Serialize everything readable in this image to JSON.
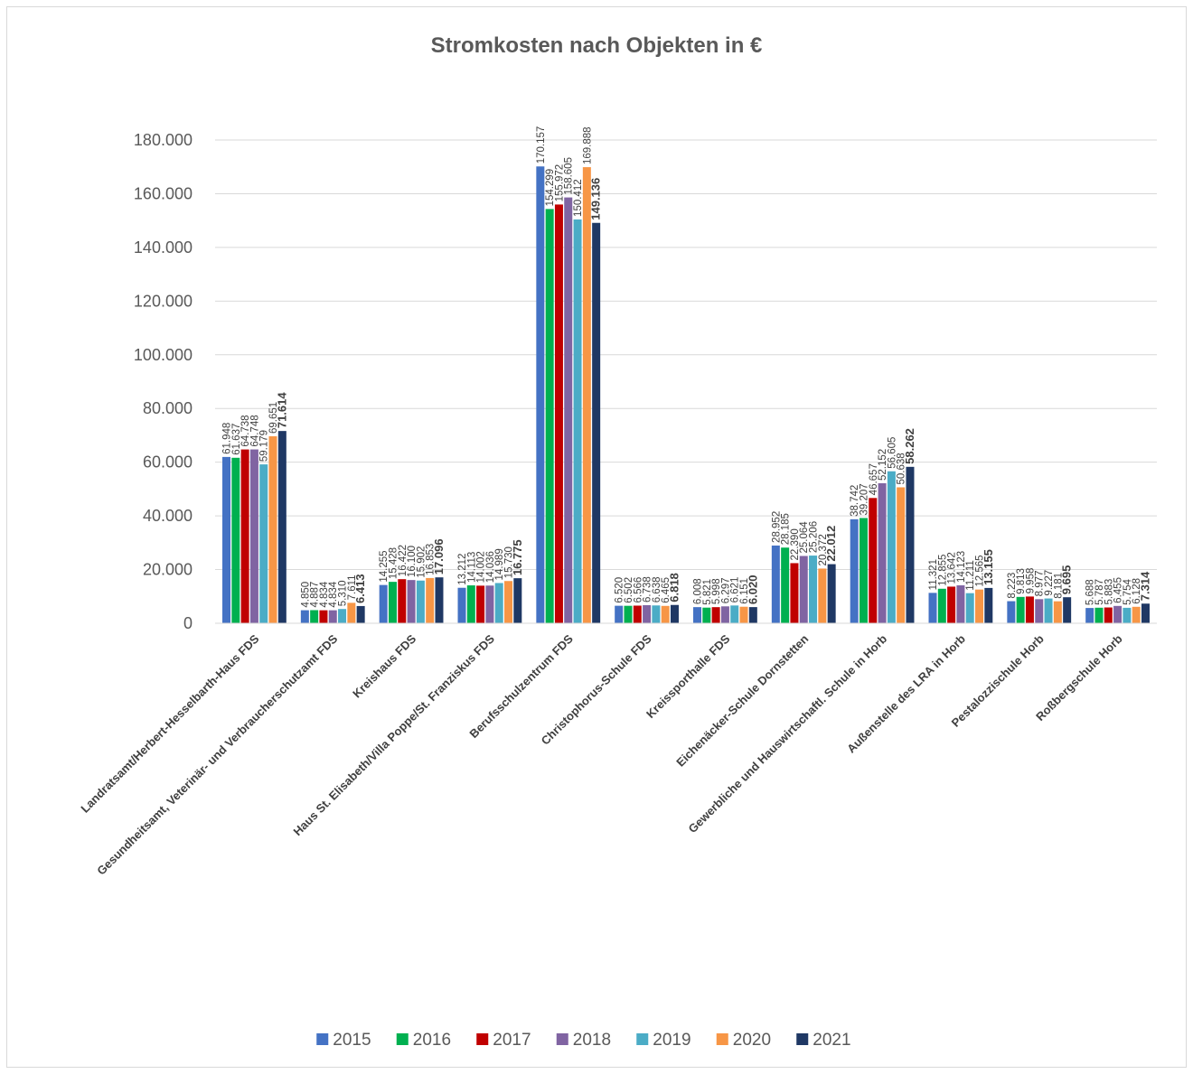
{
  "chart_data": {
    "type": "bar",
    "title": "Stromkosten nach Objekten in €",
    "xlabel": "",
    "ylabel": "",
    "ylim": [
      0,
      180000
    ],
    "yticks": [
      "0",
      "20.000",
      "40.000",
      "60.000",
      "80.000",
      "100.000",
      "120.000",
      "140.000",
      "160.000",
      "180.000"
    ],
    "grid": true,
    "legend_position": "bottom",
    "categories": [
      "Landratsamt/Herbert-Hesselbarth-Haus FDS",
      "Gesundheitsamt, Veterinär- und Verbraucherschutzamt FDS",
      "Kreishaus FDS",
      "Haus St. Elisabeth/Villa Poppe/St. Franziskus FDS",
      "Berufsschulzentrum FDS",
      "Christophorus-Schule FDS",
      "Kreissporthalle FDS",
      "Eichenäcker-Schule Dornstetten",
      "Gewerbliche und Hauswirtschaftl. Schule in Horb",
      "Außenstelle des LRA in Horb",
      "Pestalozzischule Horb",
      "Roßbergschule Horb"
    ],
    "series": [
      {
        "name": "2015",
        "color": "#4472C4",
        "values": [
          61948,
          4850,
          14255,
          13212,
          170157,
          6520,
          6008,
          28952,
          38742,
          11321,
          8223,
          5688
        ],
        "labels": [
          "61.948",
          "4.850",
          "14.255",
          "13.212",
          "170.157",
          "6.520",
          "6.008",
          "28.952",
          "38.742",
          "11.321",
          "8.223",
          "5.688"
        ]
      },
      {
        "name": "2016",
        "color": "#00B050",
        "values": [
          61637,
          4887,
          15428,
          14113,
          154299,
          6502,
          5821,
          28185,
          39207,
          12855,
          9813,
          5787
        ]
      },
      {
        "name": "2017",
        "color": "#C00000",
        "values": [
          64738,
          4834,
          16422,
          14002,
          155972,
          6566,
          5998,
          22390,
          46657,
          13642,
          9958,
          5883
        ]
      },
      {
        "name": "2018",
        "color": "#8064A2",
        "values": [
          64748,
          4834,
          16100,
          14036,
          158605,
          6738,
          6297,
          25064,
          52152,
          14123,
          8977,
          6455
        ]
      },
      {
        "name": "2019",
        "color": "#4BACC6",
        "values": [
          59179,
          5310,
          15902,
          14989,
          150412,
          6638,
          6621,
          25206,
          56605,
          11211,
          9227,
          5754
        ]
      },
      {
        "name": "2020",
        "color": "#F79646",
        "values": [
          69651,
          7611,
          16853,
          15730,
          169888,
          6465,
          6151,
          20372,
          50638,
          12565,
          8181,
          6128
        ]
      },
      {
        "name": "2021",
        "color": "#1F3864",
        "values": [
          71614,
          6413,
          17096,
          16775,
          149136,
          6818,
          6020,
          22012,
          58262,
          13155,
          9695,
          7314
        ],
        "labels": [
          "71.614",
          "6.413",
          "17.096",
          "16.775",
          "149.136",
          "6.818",
          "6.020",
          "22.012",
          "58.262",
          "13.155",
          "9.695",
          "7.314"
        ]
      }
    ]
  }
}
